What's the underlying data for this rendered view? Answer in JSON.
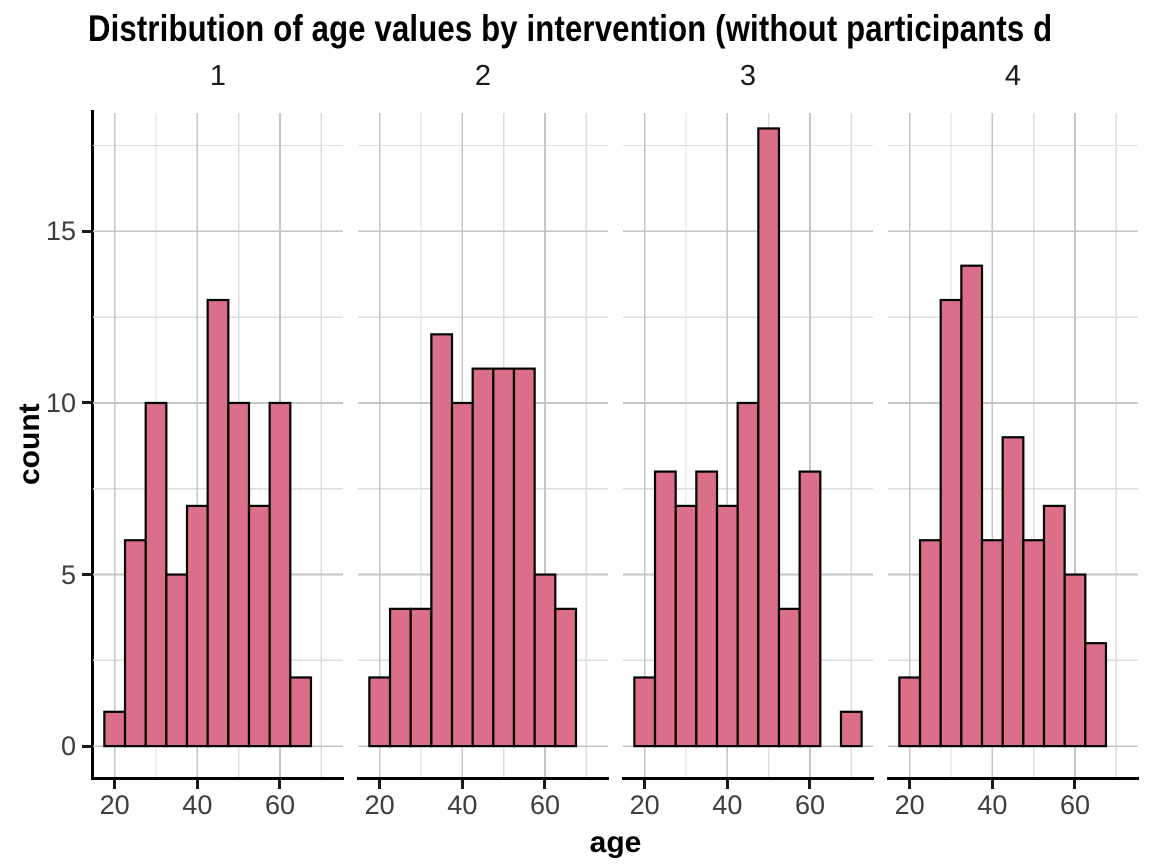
{
  "title": "Distribution of age values by intervention (without participants d",
  "chart_data": {
    "type": "bar",
    "subtype": "faceted-histogram",
    "title": "Distribution of age values by intervention (without participants d",
    "xlabel": "age",
    "ylabel": "count",
    "facet_variable_values": [
      "1",
      "2",
      "3",
      "4"
    ],
    "bin_width": 5,
    "bin_centers": [
      20,
      25,
      30,
      35,
      40,
      45,
      50,
      55,
      60,
      65,
      70
    ],
    "facets": [
      {
        "label": "1",
        "counts": [
          1,
          6,
          10,
          5,
          7,
          13,
          10,
          7,
          10,
          2,
          0
        ]
      },
      {
        "label": "2",
        "counts": [
          2,
          4,
          4,
          12,
          10,
          11,
          11,
          11,
          5,
          4,
          0
        ]
      },
      {
        "label": "3",
        "counts": [
          2,
          8,
          7,
          8,
          7,
          10,
          18,
          4,
          8,
          0,
          1
        ]
      },
      {
        "label": "4",
        "counts": [
          2,
          6,
          13,
          14,
          6,
          9,
          6,
          7,
          5,
          3,
          0
        ]
      }
    ],
    "x_ticks": [
      20,
      40,
      60
    ],
    "x_minor_gridlines": [
      30,
      50,
      70
    ],
    "y_ticks": [
      0,
      5,
      10,
      15
    ],
    "y_minor_gridlines": [
      2.5,
      7.5,
      12.5,
      17.5
    ],
    "xlim": [
      14.75,
      75.25
    ],
    "ylim": [
      -0.9,
      18.45
    ],
    "grid": true,
    "legend": "none",
    "colors": {
      "bar_fill": "#DB6E89",
      "bar_stroke": "#000000",
      "grid_major": "#C6C6C6",
      "grid_minor": "#DEDEDE",
      "axis_line": "#000000",
      "tick_label": "#3d3d3d",
      "text": "#000000",
      "background": "#ffffff"
    }
  }
}
